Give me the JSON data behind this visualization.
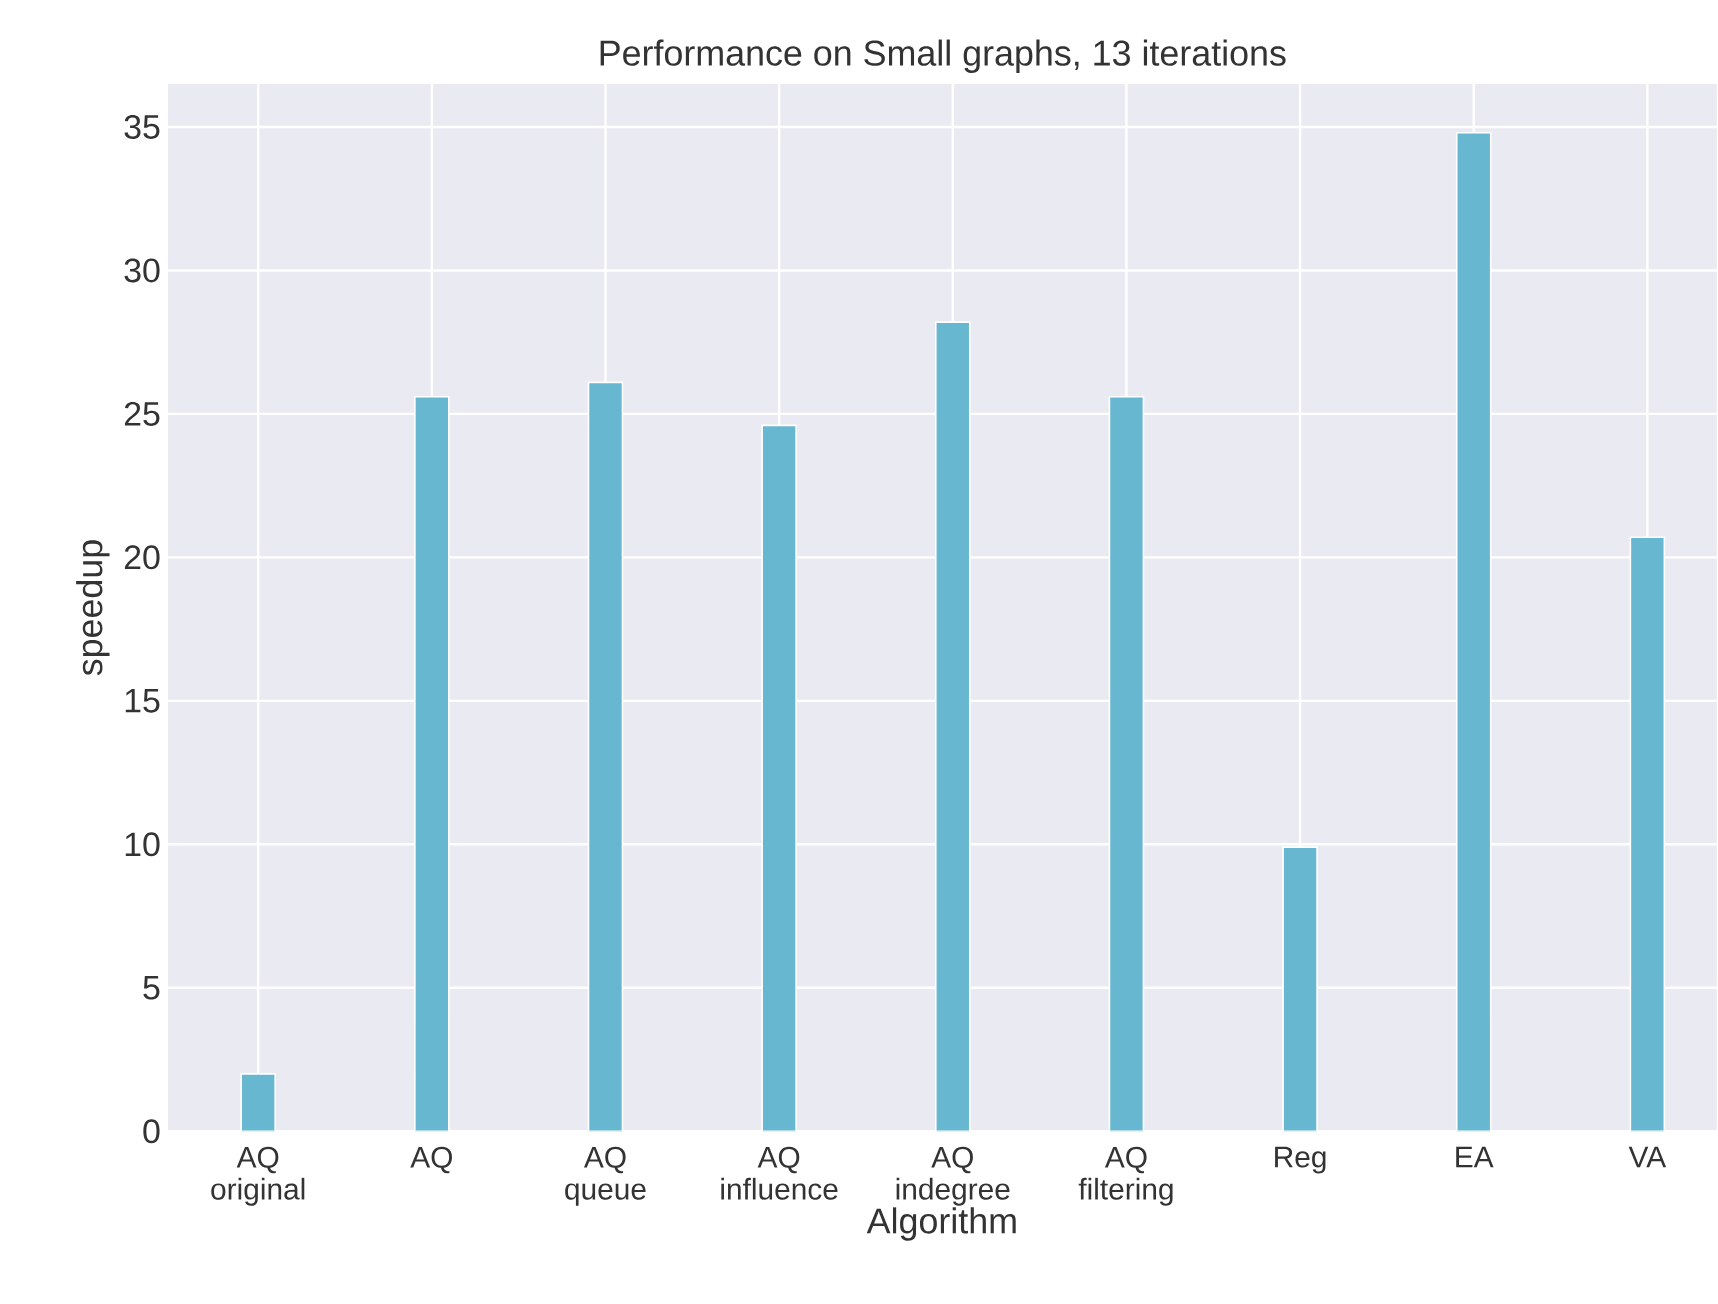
{
  "chart_data": {
    "type": "bar",
    "title": "Performance on Small graphs, 13 iterations",
    "xlabel": "Algorithm",
    "ylabel": "speedup",
    "categories": [
      "AQ original",
      "AQ",
      "AQ queue",
      "AQ influence",
      "AQ indegree",
      "AQ filtering",
      "Reg",
      "EA",
      "VA"
    ],
    "values": [
      2.0,
      25.6,
      26.1,
      24.6,
      28.2,
      25.6,
      9.9,
      34.8,
      20.7
    ],
    "color": "#67b7d1",
    "ylim": [
      0,
      36.5
    ],
    "yticks": [
      0,
      5,
      10,
      15,
      20,
      25,
      30,
      35
    ],
    "grid": true
  }
}
